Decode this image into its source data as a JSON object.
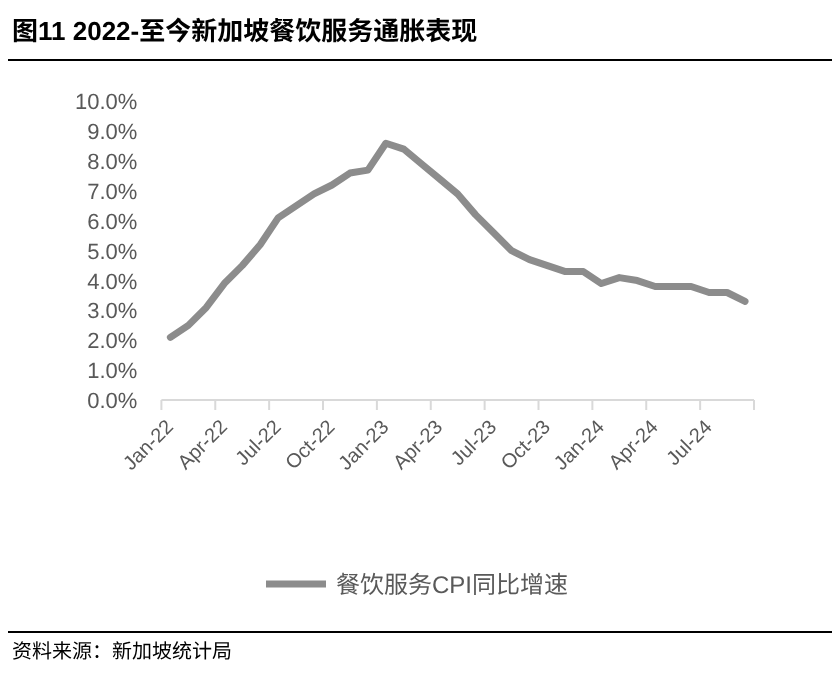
{
  "chart_data": {
    "type": "line",
    "title": "图11 2022-至今新加坡餐饮服务通胀表现",
    "categories": [
      "Jan-22",
      null,
      null,
      "Apr-22",
      null,
      null,
      "Jul-22",
      null,
      null,
      "Oct-22",
      null,
      null,
      "Jan-23",
      null,
      null,
      "Apr-23",
      null,
      null,
      "Jul-23",
      null,
      null,
      "Oct-23",
      null,
      null,
      "Jan-24",
      null,
      null,
      "Apr-24",
      null,
      null,
      "Jul-24",
      null,
      null
    ],
    "series": [
      {
        "name": "餐饮服务CPI同比增速",
        "color": "#8c8c8c",
        "values": [
          2.1,
          2.5,
          3.1,
          3.9,
          4.5,
          5.2,
          6.1,
          6.5,
          6.9,
          7.2,
          7.6,
          7.7,
          8.6,
          8.4,
          7.9,
          7.4,
          6.9,
          6.2,
          5.6,
          5.0,
          4.7,
          4.5,
          4.3,
          4.3,
          3.9,
          4.1,
          4.0,
          3.8,
          3.8,
          3.8,
          3.6,
          3.6,
          3.3
        ]
      }
    ],
    "ylim": [
      0,
      10
    ],
    "yticks": [
      {
        "value": 0,
        "label": "0.0%"
      },
      {
        "value": 1,
        "label": "1.0%"
      },
      {
        "value": 2,
        "label": "2.0%"
      },
      {
        "value": 3,
        "label": "3.0%"
      },
      {
        "value": 4,
        "label": "4.0%"
      },
      {
        "value": 5,
        "label": "5.0%"
      },
      {
        "value": 6,
        "label": "6.0%"
      },
      {
        "value": 7,
        "label": "7.0%"
      },
      {
        "value": 8,
        "label": "8.0%"
      },
      {
        "value": 9,
        "label": "9.0%"
      },
      {
        "value": 10,
        "label": "10.0%"
      }
    ],
    "grid": false,
    "legend": "bottom",
    "marker": "none",
    "line_style": "solid",
    "annotations": [
      "资料来源：新加坡统计局"
    ]
  }
}
